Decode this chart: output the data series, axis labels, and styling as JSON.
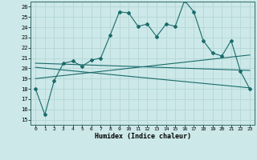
{
  "xlabel": "Humidex (Indice chaleur)",
  "xlim": [
    -0.5,
    23.5
  ],
  "ylim": [
    14.5,
    26.5
  ],
  "xticks": [
    0,
    1,
    2,
    3,
    4,
    5,
    6,
    7,
    8,
    9,
    10,
    11,
    12,
    13,
    14,
    15,
    16,
    17,
    18,
    19,
    20,
    21,
    22,
    23
  ],
  "yticks": [
    15,
    16,
    17,
    18,
    19,
    20,
    21,
    22,
    23,
    24,
    25,
    26
  ],
  "bg_color": "#cce8e8",
  "grid_color": "#b8d8d8",
  "line_color": "#1a6b6b",
  "line1_x": [
    0,
    1,
    2,
    3,
    4,
    5,
    6,
    7,
    8,
    9,
    10,
    11,
    12,
    13,
    14,
    15,
    16,
    17,
    18,
    19,
    20,
    21,
    22,
    23
  ],
  "line1_y": [
    18.0,
    15.5,
    18.8,
    20.5,
    20.7,
    20.2,
    20.8,
    21.0,
    23.2,
    25.5,
    25.4,
    24.1,
    24.3,
    23.1,
    24.3,
    24.1,
    26.6,
    25.5,
    22.7,
    21.5,
    21.2,
    22.7,
    19.7,
    18.0
  ],
  "line2_x": [
    0,
    23
  ],
  "line2_y": [
    19.0,
    21.3
  ],
  "line3_x": [
    0,
    23
  ],
  "line3_y": [
    20.5,
    19.8
  ],
  "line4_x": [
    0,
    23
  ],
  "line4_y": [
    20.1,
    18.1
  ]
}
